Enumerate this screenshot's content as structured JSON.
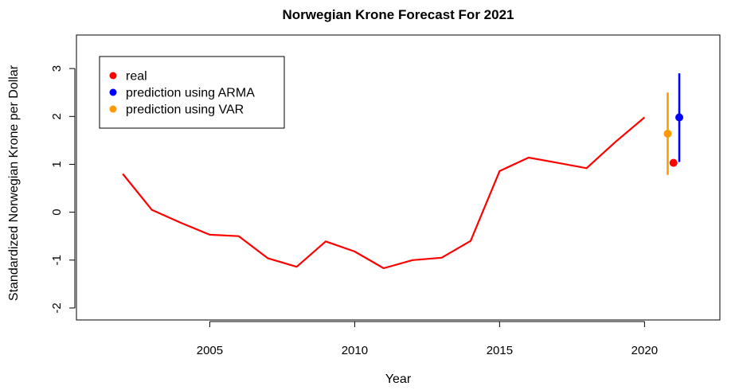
{
  "chart_data": {
    "type": "line",
    "title": "Norwegian Krone Forecast For 2021",
    "xlabel": "Year",
    "ylabel": "Standardized Norwegian Krone per Dollar",
    "xlim": [
      2000.4,
      2022.6
    ],
    "ylim": [
      -2.25,
      3.7
    ],
    "x_ticks": [
      2005,
      2010,
      2015,
      2020
    ],
    "y_ticks": [
      -2,
      -1,
      0,
      1,
      2,
      3
    ],
    "grid": false,
    "legend_position": "top-left",
    "series": [
      {
        "name": "real",
        "color": "#ff0000",
        "x": [
          2002,
          2003,
          2004,
          2005,
          2006,
          2007,
          2008,
          2009,
          2010,
          2011,
          2012,
          2013,
          2014,
          2015,
          2016,
          2017,
          2018,
          2019,
          2020
        ],
        "y": [
          0.8,
          0.05,
          -0.22,
          -0.47,
          -0.5,
          -0.96,
          -1.14,
          -0.61,
          -0.82,
          -1.17,
          -1.0,
          -0.95,
          -0.6,
          0.86,
          1.14,
          1.03,
          0.92,
          1.47,
          1.98
        ]
      }
    ],
    "points": [
      {
        "name": "real",
        "color": "#ff0000",
        "x": 2021.0,
        "y": 1.03
      },
      {
        "name": "prediction using ARMA",
        "color": "#0000ff",
        "x": 2021.2,
        "y": 1.98,
        "lower": 1.05,
        "upper": 2.9
      },
      {
        "name": "prediction using VAR",
        "color": "#ff9900",
        "x": 2020.8,
        "y": 1.64,
        "lower": 0.78,
        "upper": 2.5
      }
    ],
    "legend": [
      {
        "label": "real",
        "color": "#ff0000"
      },
      {
        "label": "prediction using ARMA",
        "color": "#0000ff"
      },
      {
        "label": "prediction using VAR",
        "color": "#ff9900"
      }
    ]
  }
}
